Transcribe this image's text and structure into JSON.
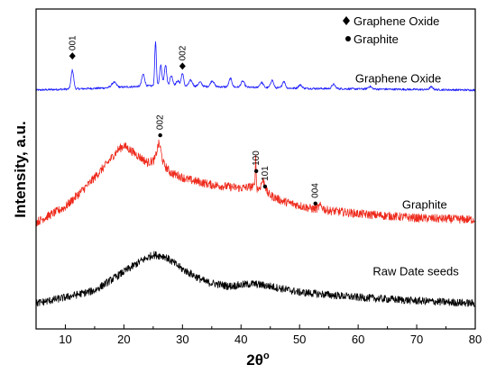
{
  "chart_data": {
    "type": "line",
    "title": "",
    "xlabel": "2θ",
    "xlabel_superscript": "o",
    "ylabel": "Intensity, a.u.",
    "xlim": [
      5,
      80
    ],
    "x_ticks": [
      "10",
      "20",
      "30",
      "40",
      "50",
      "60",
      "70",
      "80"
    ],
    "y_ticks_labeled": false,
    "legend": [
      {
        "marker": "diamond",
        "label": "Graphene Oxide"
      },
      {
        "marker": "circle",
        "label": "Graphite"
      }
    ],
    "series": [
      {
        "name": "Graphene Oxide",
        "color": "#1a1aff",
        "baseline_offset": 2.55,
        "noise": 0.012,
        "shape": [
          [
            5,
            0.0
          ],
          [
            15,
            0.02
          ],
          [
            25,
            0.05
          ],
          [
            35,
            0.04
          ],
          [
            50,
            0.02
          ],
          [
            80,
            0.0
          ]
        ],
        "peaks": [
          [
            11.2,
            0.22,
            0.22
          ],
          [
            18.3,
            0.06,
            0.4
          ],
          [
            23.3,
            0.14,
            0.25
          ],
          [
            25.4,
            0.52,
            0.14
          ],
          [
            26.3,
            0.24,
            0.2
          ],
          [
            27.1,
            0.25,
            0.2
          ],
          [
            28.1,
            0.12,
            0.25
          ],
          [
            29.2,
            0.06,
            0.3
          ],
          [
            30.0,
            0.15,
            0.2
          ],
          [
            31.4,
            0.07,
            0.3
          ],
          [
            33.0,
            0.05,
            0.3
          ],
          [
            35.1,
            0.07,
            0.3
          ],
          [
            38.2,
            0.1,
            0.25
          ],
          [
            40.3,
            0.07,
            0.3
          ],
          [
            43.5,
            0.06,
            0.3
          ],
          [
            45.3,
            0.09,
            0.25
          ],
          [
            47.3,
            0.08,
            0.25
          ],
          [
            50.1,
            0.04,
            0.3
          ],
          [
            55.8,
            0.05,
            0.3
          ],
          [
            62.0,
            0.03,
            0.3
          ],
          [
            72.5,
            0.03,
            0.3
          ]
        ]
      },
      {
        "name": "Graphite",
        "color": "#ee2a1c",
        "baseline_offset": 1.0,
        "noise": 0.05,
        "shape": [
          [
            5,
            0.0
          ],
          [
            10,
            0.18
          ],
          [
            14,
            0.45
          ],
          [
            17,
            0.68
          ],
          [
            19,
            0.85
          ],
          [
            20,
            0.9
          ],
          [
            22,
            0.8
          ],
          [
            24,
            0.7
          ],
          [
            26,
            0.74
          ],
          [
            28,
            0.58
          ],
          [
            31,
            0.5
          ],
          [
            35,
            0.44
          ],
          [
            40,
            0.4
          ],
          [
            42,
            0.42
          ],
          [
            44,
            0.35
          ],
          [
            47,
            0.25
          ],
          [
            52,
            0.16
          ],
          [
            60,
            0.1
          ],
          [
            70,
            0.05
          ],
          [
            80,
            0.03
          ]
        ],
        "peaks": [
          [
            26.0,
            0.18,
            0.35
          ],
          [
            42.5,
            0.35,
            0.08
          ],
          [
            43.8,
            0.13,
            0.35
          ],
          [
            53.6,
            0.04,
            0.4
          ]
        ]
      },
      {
        "name": "Raw Date seeds",
        "color": "#000000",
        "baseline_offset": 0.0,
        "noise": 0.045,
        "shape": [
          [
            5,
            0.05
          ],
          [
            10,
            0.12
          ],
          [
            15,
            0.2
          ],
          [
            20,
            0.42
          ],
          [
            23,
            0.55
          ],
          [
            25,
            0.62
          ],
          [
            27,
            0.6
          ],
          [
            30,
            0.45
          ],
          [
            34,
            0.3
          ],
          [
            38,
            0.25
          ],
          [
            42,
            0.28
          ],
          [
            45,
            0.25
          ],
          [
            50,
            0.18
          ],
          [
            60,
            0.12
          ],
          [
            70,
            0.08
          ],
          [
            80,
            0.05
          ]
        ],
        "peaks": []
      }
    ],
    "series_labels": [
      {
        "text": "Graphene Oxide",
        "x": 59.5,
        "y": 2.64
      },
      {
        "text": "Graphite",
        "x": 67.5,
        "y": 1.16
      },
      {
        "text": "Raw Date seeds",
        "x": 62.5,
        "y": 0.38
      }
    ],
    "peak_annotations": [
      {
        "label": "001",
        "marker": "diamond",
        "x": 11.2,
        "y": 2.95
      },
      {
        "label": "002",
        "marker": "diamond",
        "x": 30.0,
        "y": 2.83
      },
      {
        "label": "002",
        "marker": "circle",
        "x": 26.2,
        "y": 2.02
      },
      {
        "label": "100",
        "marker": "circle",
        "x": 42.6,
        "y": 1.6
      },
      {
        "label": "101",
        "marker": "circle",
        "x": 44.1,
        "y": 1.42
      },
      {
        "label": "004",
        "marker": "circle",
        "x": 52.7,
        "y": 1.22
      }
    ]
  }
}
